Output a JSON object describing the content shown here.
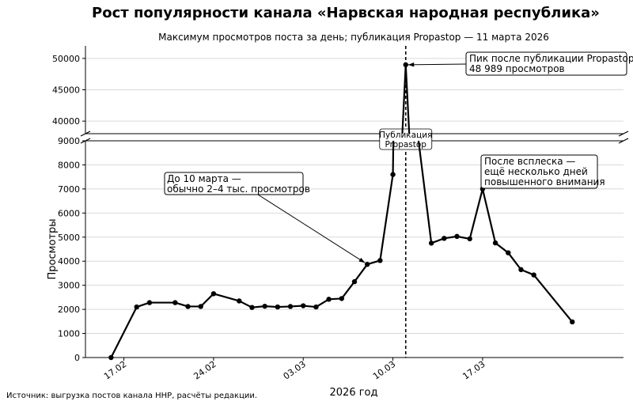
{
  "chart_data": {
    "type": "line",
    "title": "Рост популярности канала «Нарвская народная республика»",
    "subtitle": "Максимум просмотров поста за день; публикация Propastop — 11 марта 2026",
    "xlabel": "2026 год",
    "ylabel": "Просмотры",
    "source": "Источник: выгрузка постов канала ННР, расчёты редакции.",
    "x_ticks": [
      {
        "date": "2026-02-17",
        "label": "17.02"
      },
      {
        "date": "2026-02-24",
        "label": "24.02"
      },
      {
        "date": "2026-03-03",
        "label": "03.03"
      },
      {
        "date": "2026-03-10",
        "label": "10.03"
      },
      {
        "date": "2026-03-17",
        "label": "17.03"
      }
    ],
    "x_range": [
      "2026-02-14",
      "2026-03-28"
    ],
    "broken_y_axis": true,
    "upper_panel": {
      "ylim": [
        38000,
        52000
      ],
      "y_ticks": [
        40000,
        45000,
        50000
      ]
    },
    "lower_panel": {
      "ylim": [
        0,
        9000
      ],
      "y_ticks": [
        0,
        1000,
        2000,
        3000,
        4000,
        5000,
        6000,
        7000,
        8000,
        9000
      ]
    },
    "grid": "horizontal",
    "series": [
      {
        "color": "#000000",
        "points": [
          {
            "x": "2026-02-16",
            "y": 0
          },
          {
            "x": "2026-02-18",
            "y": 2100
          },
          {
            "x": "2026-02-19",
            "y": 2280
          },
          {
            "x": "2026-02-21",
            "y": 2280
          },
          {
            "x": "2026-02-22",
            "y": 2120
          },
          {
            "x": "2026-02-23",
            "y": 2120
          },
          {
            "x": "2026-02-24",
            "y": 2650
          },
          {
            "x": "2026-02-26",
            "y": 2350
          },
          {
            "x": "2026-02-27",
            "y": 2080
          },
          {
            "x": "2026-02-28",
            "y": 2130
          },
          {
            "x": "2026-03-01",
            "y": 2100
          },
          {
            "x": "2026-03-02",
            "y": 2120
          },
          {
            "x": "2026-03-03",
            "y": 2150
          },
          {
            "x": "2026-03-04",
            "y": 2100
          },
          {
            "x": "2026-03-05",
            "y": 2420
          },
          {
            "x": "2026-03-06",
            "y": 2450
          },
          {
            "x": "2026-03-07",
            "y": 3150
          },
          {
            "x": "2026-03-08",
            "y": 3870
          },
          {
            "x": "2026-03-09",
            "y": 4030
          },
          {
            "x": "2026-03-10",
            "y": 7600
          },
          {
            "x": "2026-03-11",
            "y": 48989
          },
          {
            "x": "2026-03-12",
            "y": 9000
          },
          {
            "x": "2026-03-13",
            "y": 4750
          },
          {
            "x": "2026-03-14",
            "y": 4950
          },
          {
            "x": "2026-03-15",
            "y": 5030
          },
          {
            "x": "2026-03-16",
            "y": 4930
          },
          {
            "x": "2026-03-17",
            "y": 7000
          },
          {
            "x": "2026-03-18",
            "y": 4760
          },
          {
            "x": "2026-03-19",
            "y": 4350
          },
          {
            "x": "2026-03-20",
            "y": 3650
          },
          {
            "x": "2026-03-21",
            "y": 3430
          },
          {
            "x": "2026-03-24",
            "y": 1480
          }
        ]
      }
    ],
    "event_line": {
      "x": "2026-03-11",
      "style": "dashed",
      "label": "Публикация Propastop"
    },
    "annotations": [
      {
        "text": "Пик после публикации Propastop: 48 989 просмотров",
        "lines": [
          "Пик после публикации Propastop:",
          "48 989 просмотров"
        ],
        "target": {
          "x": "2026-03-11",
          "y": 48989
        }
      },
      {
        "text": "До 10 марта — обычно 2–4 тыс. просмотров",
        "lines": [
          "До 10 марта —",
          "обычно 2–4 тыс. просмотров"
        ],
        "target": {
          "x": "2026-03-08",
          "y": 3870
        }
      },
      {
        "text": "После всплеска — ещё несколько дней повышенного внимания",
        "lines": [
          "После всплеска —",
          "ещё несколько дней",
          "повышенного внимания"
        ]
      }
    ]
  }
}
